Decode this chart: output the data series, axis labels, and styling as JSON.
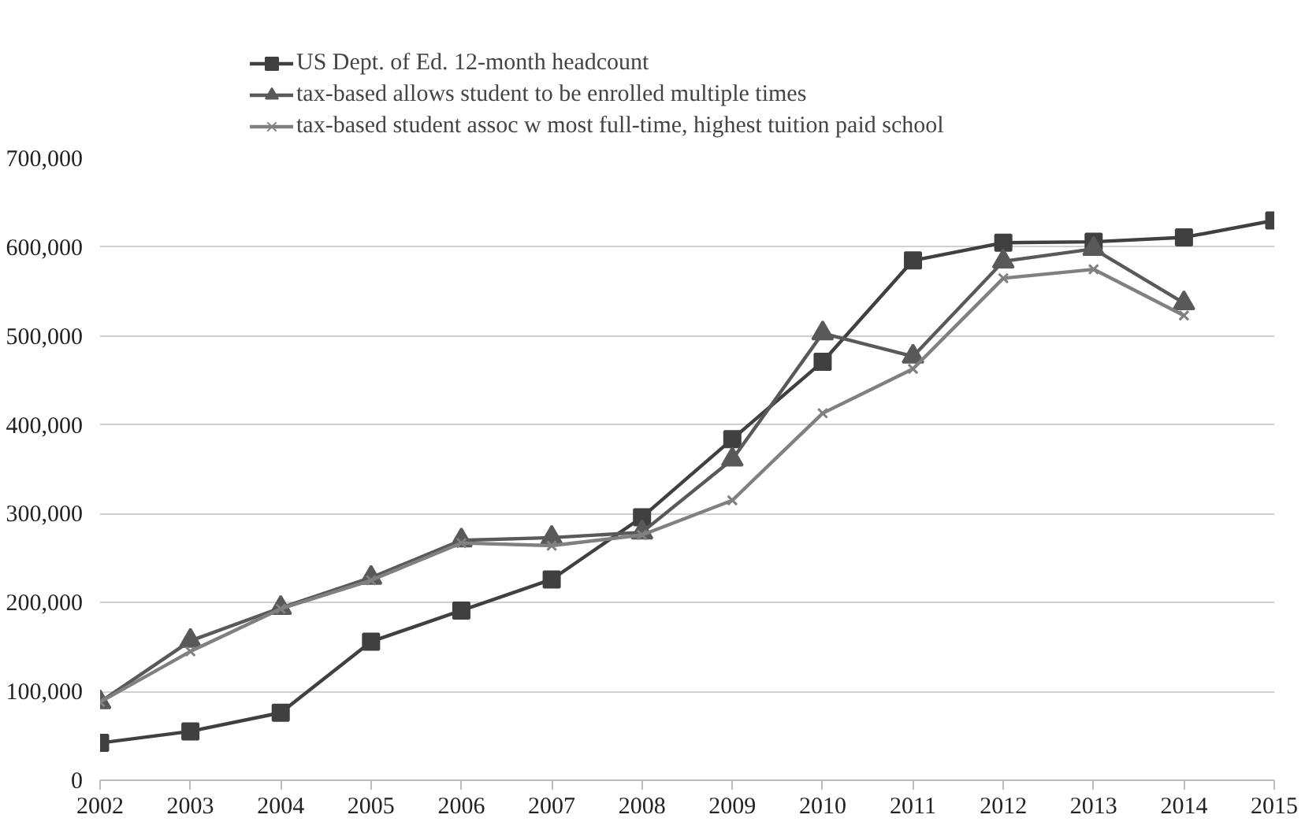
{
  "chart_data": {
    "type": "line",
    "x": [
      2002,
      2003,
      2004,
      2005,
      2006,
      2007,
      2008,
      2009,
      2010,
      2011,
      2012,
      2013,
      2014,
      2015
    ],
    "xlim": [
      2002,
      2015
    ],
    "xticks": [
      2002,
      2003,
      2004,
      2005,
      2006,
      2007,
      2008,
      2009,
      2010,
      2011,
      2012,
      2013,
      2014,
      2015
    ],
    "ylim": [
      0,
      700000
    ],
    "yticks": [
      {
        "value": 0,
        "label": "0"
      },
      {
        "value": 100000,
        "label": "100,000"
      },
      {
        "value": 200000,
        "label": "200,000"
      },
      {
        "value": 300000,
        "label": "300,000"
      },
      {
        "value": 400000,
        "label": "400,000"
      },
      {
        "value": 500000,
        "label": "500,000"
      },
      {
        "value": 600000,
        "label": "600,000"
      },
      {
        "value": 700000,
        "label": "700,000"
      }
    ],
    "grid": "y",
    "legend": "top",
    "series": [
      {
        "name": "US Dept. of Ed. 12-month headcount",
        "color": "#404040",
        "marker": "square",
        "values": [
          42000,
          55000,
          76000,
          156000,
          191000,
          226000,
          296000,
          384000,
          471000,
          585000,
          605000,
          606000,
          611000,
          630000
        ]
      },
      {
        "name": "tax-based allows student to be enrolled multiple times",
        "color": "#595959",
        "marker": "triangle",
        "values": [
          88000,
          157000,
          194000,
          228000,
          270000,
          273000,
          279000,
          361000,
          503000,
          477000,
          584000,
          598000,
          537000,
          null
        ]
      },
      {
        "name": "tax-based student assoc w most full-time, highest tuition paid school",
        "color": "#808080",
        "marker": "cross",
        "values": [
          88000,
          145000,
          193000,
          225000,
          267000,
          264000,
          276000,
          315000,
          413000,
          463000,
          565000,
          575000,
          523000,
          null
        ]
      }
    ]
  }
}
